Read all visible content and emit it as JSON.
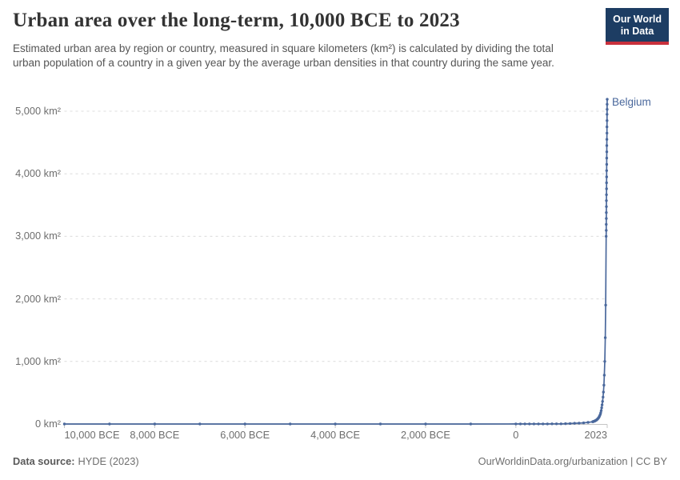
{
  "header": {
    "title": "Urban area over the long-term, 10,000 BCE to 2023",
    "subtitle": "Estimated urban area by region or country, measured in square kilometers (km²) is calculated by dividing the total urban population of a country in a given year by the average urban densities in that country during the same year.",
    "logo": {
      "line1": "Our World",
      "line2": "in Data",
      "bg_color": "#1d3d63",
      "stripe_color": "#c8303c"
    }
  },
  "chart_data": {
    "type": "line",
    "title": "Urban area over the long-term, 10,000 BCE to 2023",
    "xlabel": "",
    "ylabel": "",
    "unit": "km²",
    "xlim": [
      -10000,
      2023
    ],
    "ylim": [
      0,
      5000
    ],
    "grid": "dashed-horizontal",
    "legend_position": "end-of-line-label",
    "x_ticks": [
      {
        "year": -10000,
        "label": "10,000 BCE"
      },
      {
        "year": -8000,
        "label": "8,000 BCE"
      },
      {
        "year": -6000,
        "label": "6,000 BCE"
      },
      {
        "year": -4000,
        "label": "4,000 BCE"
      },
      {
        "year": -2000,
        "label": "2,000 BCE"
      },
      {
        "year": 0,
        "label": "0"
      },
      {
        "year": 2023,
        "label": "2023"
      }
    ],
    "y_ticks": [
      {
        "value": 0,
        "label": "0 km²"
      },
      {
        "value": 1000,
        "label": "1,000 km²"
      },
      {
        "value": 2000,
        "label": "2,000 km²"
      },
      {
        "value": 3000,
        "label": "3,000 km²"
      },
      {
        "value": 4000,
        "label": "4,000 km²"
      },
      {
        "value": 5000,
        "label": "5,000 km²"
      }
    ],
    "series": [
      {
        "name": "Belgium",
        "color": "#4a689c",
        "points": [
          [
            -10000,
            0
          ],
          [
            -9000,
            0
          ],
          [
            -8000,
            0
          ],
          [
            -7000,
            0
          ],
          [
            -6000,
            0
          ],
          [
            -5000,
            0
          ],
          [
            -4000,
            0
          ],
          [
            -3000,
            0
          ],
          [
            -2000,
            0
          ],
          [
            -1000,
            0
          ],
          [
            0,
            1
          ],
          [
            100,
            1
          ],
          [
            200,
            1
          ],
          [
            300,
            1
          ],
          [
            400,
            1
          ],
          [
            500,
            1
          ],
          [
            600,
            1
          ],
          [
            700,
            1
          ],
          [
            800,
            2
          ],
          [
            900,
            2
          ],
          [
            1000,
            3
          ],
          [
            1100,
            5
          ],
          [
            1200,
            8
          ],
          [
            1300,
            12
          ],
          [
            1400,
            14
          ],
          [
            1500,
            18
          ],
          [
            1600,
            25
          ],
          [
            1700,
            36
          ],
          [
            1710,
            38
          ],
          [
            1720,
            40
          ],
          [
            1730,
            43
          ],
          [
            1740,
            46
          ],
          [
            1750,
            49
          ],
          [
            1760,
            53
          ],
          [
            1770,
            57
          ],
          [
            1780,
            62
          ],
          [
            1790,
            67
          ],
          [
            1800,
            73
          ],
          [
            1810,
            80
          ],
          [
            1820,
            88
          ],
          [
            1830,
            97
          ],
          [
            1840,
            108
          ],
          [
            1850,
            121
          ],
          [
            1860,
            137
          ],
          [
            1870,
            156
          ],
          [
            1880,
            180
          ],
          [
            1890,
            215
          ],
          [
            1900,
            260
          ],
          [
            1910,
            305
          ],
          [
            1920,
            360
          ],
          [
            1930,
            430
          ],
          [
            1940,
            510
          ],
          [
            1950,
            620
          ],
          [
            1960,
            780
          ],
          [
            1970,
            1000
          ],
          [
            1980,
            1380
          ],
          [
            1990,
            1900
          ],
          [
            2000,
            3000
          ],
          [
            2001,
            3095
          ],
          [
            2002,
            3190
          ],
          [
            2003,
            3285
          ],
          [
            2004,
            3380
          ],
          [
            2005,
            3475
          ],
          [
            2006,
            3570
          ],
          [
            2007,
            3665
          ],
          [
            2008,
            3760
          ],
          [
            2009,
            3855
          ],
          [
            2010,
            3950
          ],
          [
            2011,
            4050
          ],
          [
            2012,
            4150
          ],
          [
            2013,
            4250
          ],
          [
            2014,
            4350
          ],
          [
            2015,
            4450
          ],
          [
            2016,
            4550
          ],
          [
            2017,
            4650
          ],
          [
            2018,
            4750
          ],
          [
            2019,
            4850
          ],
          [
            2020,
            4950
          ],
          [
            2021,
            5030
          ],
          [
            2022,
            5110
          ],
          [
            2023,
            5190
          ]
        ]
      }
    ]
  },
  "footer": {
    "datasource_label": "Data source:",
    "datasource_value": "HYDE (2023)",
    "attribution": "OurWorldinData.org/urbanization | CC BY"
  },
  "colors": {
    "line": "#4a689c",
    "gridline": "#dcdcdc",
    "axis": "#c4c4c4",
    "tick_text": "#6e6e6e"
  }
}
